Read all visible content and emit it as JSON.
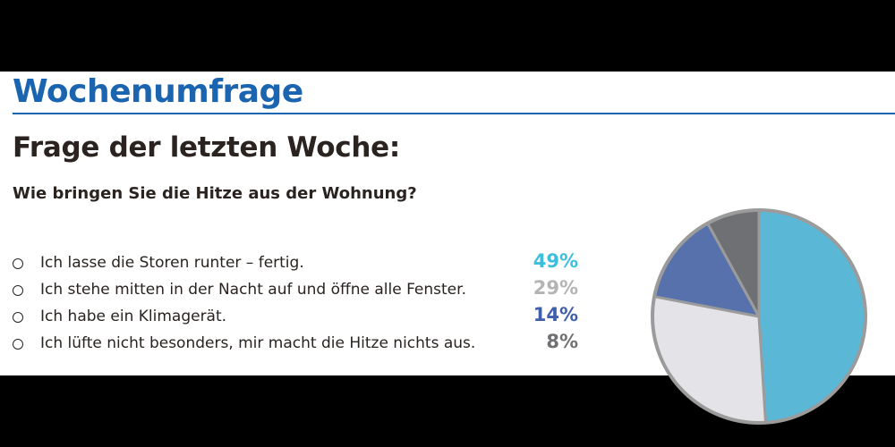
{
  "header": {
    "title": "Wochenumfrage"
  },
  "question": {
    "heading": "Frage der letzten Woche:",
    "text": "Wie bringen Sie die Hitze aus der Wohnung?"
  },
  "answers": [
    {
      "label": "Ich lasse die Storen runter – fertig.",
      "value_label": "49%",
      "color": "#3bbfdd"
    },
    {
      "label": "Ich stehe mitten in der Nacht auf und öffne alle Fenster.",
      "value_label": "29%",
      "color": "#b4b4b4"
    },
    {
      "label": "Ich habe ein Klimagerät.",
      "value_label": "14%",
      "color": "#3f5eac"
    },
    {
      "label": "Ich lüfte nicht besonders, mir macht die Hitze nichts aus.",
      "value_label": "8%",
      "color": "#707072"
    }
  ],
  "chart_data": {
    "type": "pie",
    "categories": [
      "Ich lasse die Storen runter – fertig.",
      "Ich stehe mitten in der Nacht auf und öffne alle Fenster.",
      "Ich habe ein Klimagerät.",
      "Ich lüfte nicht besonders, mir macht die Hitze nichts aus."
    ],
    "values": [
      49,
      29,
      14,
      8
    ],
    "colors": [
      "#5ab8d6",
      "#e4e4e8",
      "#5671ab",
      "#6f7073"
    ],
    "outline_color": "#9b9b9b",
    "start": "top",
    "direction": "clockwise"
  }
}
